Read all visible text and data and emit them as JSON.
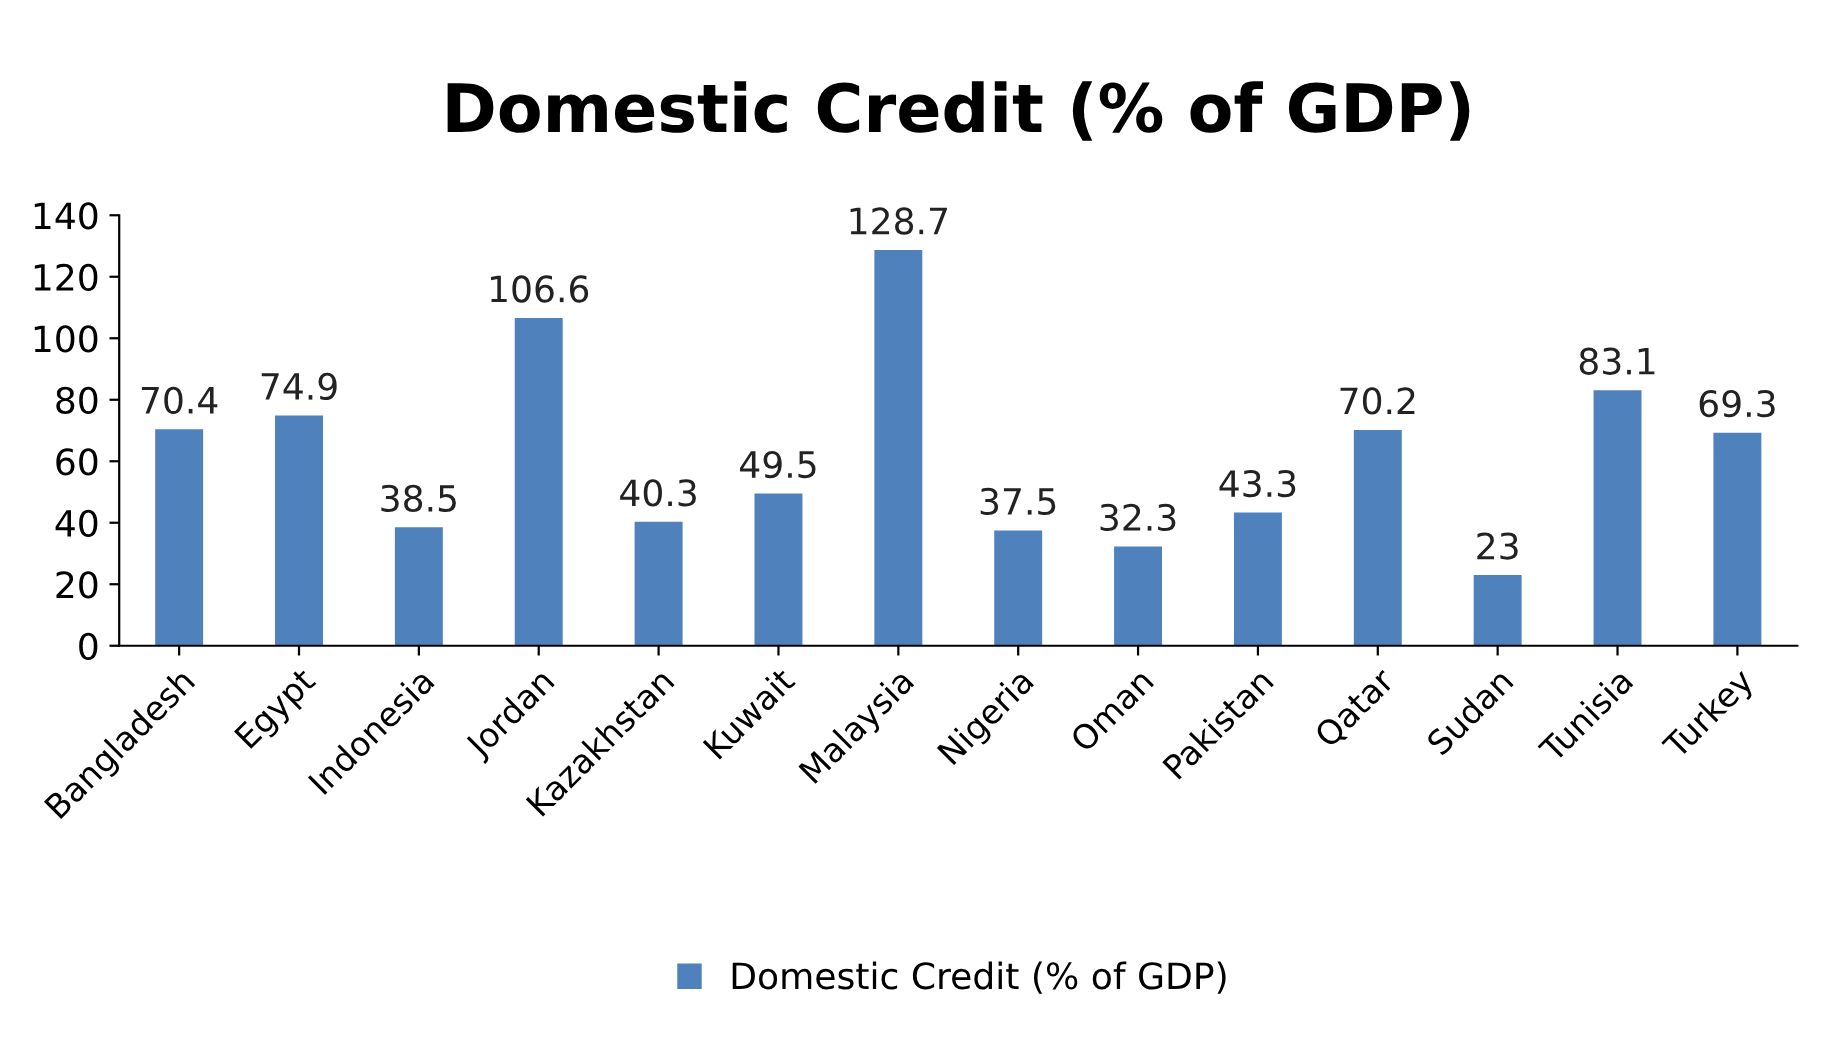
{
  "chart_data": {
    "type": "bar",
    "title": "Domestic Credit (% of GDP)",
    "categories": [
      "Bangladesh",
      "Egypt",
      "Indonesia",
      "Jordan",
      "Kazakhstan",
      "Kuwait",
      "Malaysia",
      "Nigeria",
      "Oman",
      "Pakistan",
      "Qatar",
      "Sudan",
      "Tunisia",
      "Turkey"
    ],
    "series": [
      {
        "name": "Domestic Credit (% of GDP)",
        "color": "#4f81bd",
        "values": [
          70.4,
          74.9,
          38.5,
          106.6,
          40.3,
          49.5,
          128.7,
          37.5,
          32.3,
          43.3,
          70.2,
          23,
          83.1,
          69.3
        ]
      }
    ],
    "ylim": [
      0,
      140
    ],
    "yticks": [
      0,
      20,
      40,
      60,
      80,
      100,
      120,
      140
    ],
    "grid": false,
    "legend": "bottom",
    "data_labels": true
  }
}
